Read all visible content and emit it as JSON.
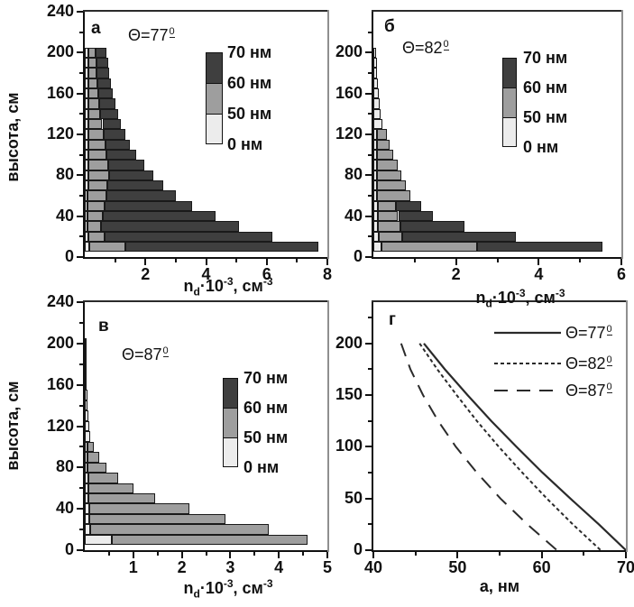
{
  "ylabel": "высота, см",
  "legend_items": [
    "70 нм",
    "60 нм",
    "50 нм",
    "0 нм"
  ],
  "nd_label": {
    "p1": "n",
    "p2": "d",
    "p3": "·10",
    "p4": "-3",
    "p5": ", см",
    "p6": "-3"
  },
  "panels": {
    "a": {
      "letter": "а",
      "theta_base": "Θ=77",
      "theta_deg": "0"
    },
    "b": {
      "letter": "б",
      "theta_base": "Θ=82",
      "theta_deg": "0"
    },
    "v": {
      "letter": "в",
      "theta_base": "Θ=87",
      "theta_deg": "0"
    },
    "g": {
      "letter": "г",
      "xlabel": "a, нм",
      "legend": [
        {
          "base": "Θ=77",
          "deg": "0"
        },
        {
          "base": "Θ=82",
          "deg": "0"
        },
        {
          "base": "Θ=87",
          "deg": "0"
        }
      ]
    }
  },
  "colors": {
    "bar_70nm": "#3f3f3f",
    "bar_60nm": "#9e9e9e",
    "bar_0_50nm": "#ececec",
    "axis": "#111111"
  },
  "chart_data": [
    {
      "id": "a",
      "type": "bar",
      "panel_letter": "а",
      "annotation": "Θ=77°",
      "xlabel": "n_d·10^-3, см^-3",
      "ylabel": "высота, см",
      "xlim": [
        0,
        8
      ],
      "xticks": [
        2,
        4,
        6,
        8
      ],
      "xminor": [
        1,
        3,
        5,
        7
      ],
      "ylim": [
        0,
        240
      ],
      "yticks": [
        0,
        40,
        80,
        120,
        160,
        200,
        240
      ],
      "yminor": [
        20,
        60,
        100,
        140,
        180,
        220
      ],
      "stack_legend": [
        "70 нм",
        "60 нм",
        "50 нм",
        "0 нм"
      ],
      "bin_cm": 10,
      "bars_format": "[height_cm, end_0_50nm, end_50_60nm, end_60_70nm]",
      "bars": [
        [
          10,
          0.15,
          1.35,
          7.7
        ],
        [
          20,
          0.12,
          0.65,
          6.2
        ],
        [
          30,
          0.1,
          0.55,
          5.1
        ],
        [
          40,
          0.1,
          0.6,
          4.3
        ],
        [
          50,
          0.1,
          0.65,
          3.55
        ],
        [
          60,
          0.1,
          0.7,
          3.0
        ],
        [
          70,
          0.12,
          0.75,
          2.6
        ],
        [
          80,
          0.12,
          0.8,
          2.25
        ],
        [
          90,
          0.12,
          0.78,
          1.95
        ],
        [
          100,
          0.12,
          0.72,
          1.7
        ],
        [
          110,
          0.12,
          0.68,
          1.5
        ],
        [
          120,
          0.12,
          0.62,
          1.35
        ],
        [
          130,
          0.12,
          0.58,
          1.2
        ],
        [
          140,
          0.12,
          0.52,
          1.1
        ],
        [
          150,
          0.12,
          0.48,
          1.0
        ],
        [
          160,
          0.12,
          0.45,
          0.92
        ],
        [
          170,
          0.12,
          0.42,
          0.86
        ],
        [
          180,
          0.12,
          0.4,
          0.8
        ],
        [
          190,
          0.12,
          0.38,
          0.76
        ],
        [
          200,
          0.12,
          0.36,
          0.72
        ]
      ]
    },
    {
      "id": "b",
      "type": "bar",
      "panel_letter": "б",
      "annotation": "Θ=82°",
      "xlabel": "n_d·10^-3, см^-3",
      "ylabel": "высота, см",
      "xlim": [
        0,
        6
      ],
      "xticks": [
        2,
        4,
        6
      ],
      "xminor": [
        1,
        3,
        5
      ],
      "ylim": [
        0,
        240
      ],
      "yticks": [
        0,
        40,
        80,
        120,
        160,
        200
      ],
      "yminor": [
        20,
        60,
        100,
        140,
        180,
        220
      ],
      "stack_legend": [
        "70 нм",
        "60 нм",
        "50 нм",
        "0 нм"
      ],
      "bin_cm": 10,
      "bars_format": "[height_cm, end_0_50nm, end_50_60nm, end_60_70nm]",
      "bars": [
        [
          10,
          0.2,
          2.5,
          5.55
        ],
        [
          20,
          0.12,
          0.7,
          3.45
        ],
        [
          30,
          0.1,
          0.65,
          2.2
        ],
        [
          40,
          0.1,
          0.6,
          1.45
        ],
        [
          50,
          0.1,
          0.55,
          1.15
        ],
        [
          60,
          0.08,
          0.9,
          0.9
        ],
        [
          70,
          0.08,
          0.78,
          0.78
        ],
        [
          80,
          0.08,
          0.68,
          0.68
        ],
        [
          90,
          0.08,
          0.58,
          0.58
        ],
        [
          100,
          0.08,
          0.48,
          0.48
        ],
        [
          110,
          0.08,
          0.4,
          0.4
        ],
        [
          120,
          0.08,
          0.33,
          0.33
        ],
        [
          130,
          0.22,
          0.22,
          0.22
        ],
        [
          140,
          0.18,
          0.18,
          0.18
        ],
        [
          150,
          0.15,
          0.15,
          0.15
        ],
        [
          160,
          0.13,
          0.13,
          0.13
        ],
        [
          170,
          0.11,
          0.11,
          0.11
        ],
        [
          180,
          0.09,
          0.09,
          0.09
        ],
        [
          190,
          0.08,
          0.08,
          0.08
        ],
        [
          200,
          0.07,
          0.07,
          0.07
        ]
      ]
    },
    {
      "id": "v",
      "type": "bar",
      "panel_letter": "в",
      "annotation": "Θ=87°",
      "xlabel": "n_d·10^-3, см^-3",
      "ylabel": "высота, см",
      "xlim": [
        0,
        5
      ],
      "xticks": [
        1,
        2,
        3,
        4,
        5
      ],
      "xminor": [
        0.5,
        1.5,
        2.5,
        3.5,
        4.5
      ],
      "ylim": [
        0,
        240
      ],
      "yticks": [
        0,
        40,
        80,
        120,
        160,
        200,
        240
      ],
      "yminor": [
        20,
        60,
        100,
        140,
        180,
        220
      ],
      "stack_legend": [
        "70 нм",
        "60 нм",
        "50 нм",
        "0 нм"
      ],
      "bin_cm": 10,
      "bars_format": "[height_cm, end_0_50nm, end_50_60nm, end_60_70nm]",
      "bars": [
        [
          10,
          0.55,
          4.6,
          4.6
        ],
        [
          20,
          0.12,
          3.8,
          3.8
        ],
        [
          30,
          0.1,
          2.9,
          2.9
        ],
        [
          40,
          0.1,
          2.15,
          2.15
        ],
        [
          50,
          0.08,
          1.45,
          1.45
        ],
        [
          60,
          0.08,
          1.0,
          1.0
        ],
        [
          70,
          0.08,
          0.68,
          0.68
        ],
        [
          80,
          0.06,
          0.45,
          0.45
        ],
        [
          90,
          0.06,
          0.3,
          0.3
        ],
        [
          100,
          0.05,
          0.18,
          0.18
        ],
        [
          110,
          0.12,
          0.12,
          0.12
        ],
        [
          120,
          0.1,
          0.1,
          0.1
        ],
        [
          130,
          0.08,
          0.08,
          0.08
        ],
        [
          140,
          0.065,
          0.065,
          0.065
        ],
        [
          150,
          0.055,
          0.055,
          0.055
        ],
        [
          160,
          0.045,
          0.045,
          0.045
        ],
        [
          170,
          0.04,
          0.04,
          0.04
        ],
        [
          180,
          0.03,
          0.03,
          0.03
        ],
        [
          190,
          0.025,
          0.025,
          0.025
        ],
        [
          200,
          0.02,
          0.02,
          0.02
        ]
      ]
    },
    {
      "id": "g",
      "type": "line",
      "panel_letter": "г",
      "xlabel": "a, нм",
      "ylabel": "высота, см",
      "xlim": [
        40,
        70
      ],
      "xticks": [
        40,
        50,
        60,
        70
      ],
      "xminor": [
        45,
        55,
        65
      ],
      "ylim": [
        0,
        240
      ],
      "yticks": [
        0,
        50,
        100,
        150,
        200
      ],
      "yminor": [
        25,
        75,
        125,
        175,
        225
      ],
      "legend_position": "top-right",
      "series": [
        {
          "name": "Θ=77°",
          "line_style": "solid",
          "points": [
            [
              46.0,
              200
            ],
            [
              48.5,
              175
            ],
            [
              51.2,
              150
            ],
            [
              54.0,
              125
            ],
            [
              57.0,
              100
            ],
            [
              60.1,
              75
            ],
            [
              63.4,
              50
            ],
            [
              66.8,
              25
            ],
            [
              70.0,
              0
            ]
          ]
        },
        {
          "name": "Θ=82°",
          "line_style": "short-dash",
          "points": [
            [
              45.5,
              200
            ],
            [
              47.6,
              175
            ],
            [
              49.9,
              150
            ],
            [
              52.3,
              125
            ],
            [
              54.9,
              100
            ],
            [
              57.7,
              75
            ],
            [
              60.6,
              50
            ],
            [
              63.7,
              25
            ],
            [
              67.0,
              0
            ]
          ]
        },
        {
          "name": "Θ=87°",
          "line_style": "long-dash",
          "points": [
            [
              43.3,
              200
            ],
            [
              44.4,
              175
            ],
            [
              45.9,
              150
            ],
            [
              47.7,
              125
            ],
            [
              49.8,
              100
            ],
            [
              52.3,
              75
            ],
            [
              55.1,
              50
            ],
            [
              58.3,
              25
            ],
            [
              61.8,
              0
            ]
          ]
        }
      ]
    }
  ]
}
